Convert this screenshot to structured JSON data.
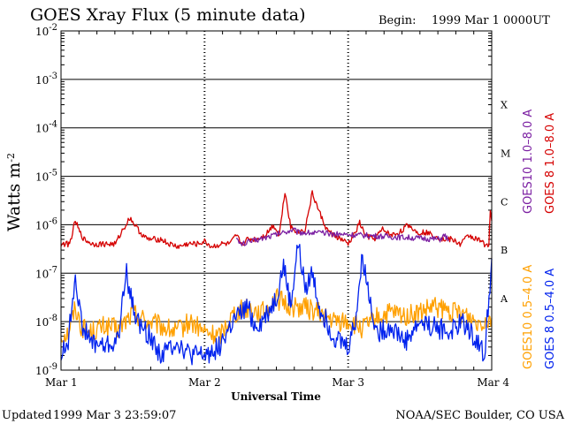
{
  "page": {
    "title": "GOES Xray Flux (5 minute data)",
    "begin_label": "Begin:",
    "begin_value": "1999 Mar 1 0000UT",
    "updated_label": "Updated",
    "updated_value": "1999 Mar  3 23:59:07",
    "credit": "NOAA/SEC Boulder, CO USA"
  },
  "colors": {
    "goes10_long": "#7b1fa2",
    "goes8_long": "#d50000",
    "goes10_short": "#ffa000",
    "goes8_short": "#0022ee",
    "grid": "#000000"
  },
  "chart_data": {
    "type": "line",
    "title": "GOES Xray Flux (5 minute data)",
    "xlabel": "Universal Time",
    "ylabel_base": "Watts m",
    "ylabel_exp": "-2",
    "yscale": "log",
    "ylim": [
      1e-09,
      0.01
    ],
    "y_ticks": [
      {
        "value": 1e-09,
        "base": "10",
        "exp": "-9"
      },
      {
        "value": 1e-08,
        "base": "10",
        "exp": "-8"
      },
      {
        "value": 1e-07,
        "base": "10",
        "exp": "-7"
      },
      {
        "value": 1e-06,
        "base": "10",
        "exp": "-6"
      },
      {
        "value": 1e-05,
        "base": "10",
        "exp": "-5"
      },
      {
        "value": 0.0001,
        "base": "10",
        "exp": "-4"
      },
      {
        "value": 0.001,
        "base": "10",
        "exp": "-3"
      },
      {
        "value": 0.01,
        "base": "10",
        "exp": "-2"
      }
    ],
    "x_unit": "days since 1999 Mar 1 00:00 UT",
    "xlim": [
      0,
      3
    ],
    "x_ticks": [
      {
        "value": 0,
        "label": "Mar 1"
      },
      {
        "value": 1,
        "label": "Mar 2"
      },
      {
        "value": 2,
        "label": "Mar 3"
      },
      {
        "value": 3,
        "label": "Mar 4"
      }
    ],
    "flare_classes": [
      {
        "label": "A",
        "value": 3e-08
      },
      {
        "label": "B",
        "value": 3e-07
      },
      {
        "label": "C",
        "value": 3e-06
      },
      {
        "label": "M",
        "value": 3e-05
      },
      {
        "label": "X",
        "value": 0.0003
      }
    ],
    "legend_right_inner": {
      "goes10_long": "GOES10 1.0–8.0 A",
      "goes10_short": "GOES10 0.5–4.0 A"
    },
    "legend_right_outer": {
      "goes8_long": "GOES 8 1.0–8.0 A",
      "goes8_short": "GOES 8 0.5–4.0 A"
    },
    "series": [
      {
        "name": "GOES 8 1.0–8.0 A",
        "key": "goes8_long",
        "x": [
          0,
          0.06,
          0.1,
          0.13,
          0.16,
          0.22,
          0.28,
          0.34,
          0.38,
          0.42,
          0.48,
          0.55,
          0.6,
          0.64,
          0.7,
          0.75,
          0.82,
          0.88,
          0.95,
          1.0,
          1.05,
          1.12,
          1.18,
          1.22,
          1.26,
          1.3,
          1.36,
          1.42,
          1.48,
          1.52,
          1.56,
          1.6,
          1.65,
          1.7,
          1.75,
          1.8,
          1.85,
          1.9,
          1.95,
          2.0,
          2.04,
          2.08,
          2.12,
          2.18,
          2.24,
          2.3,
          2.36,
          2.42,
          2.48,
          2.54,
          2.6,
          2.66,
          2.72,
          2.78,
          2.84,
          2.9,
          2.95,
          2.98,
          2.99,
          3.0
        ],
        "y": [
          4e-07,
          4e-07,
          1.2e-06,
          7e-07,
          5e-07,
          4e-07,
          4e-07,
          4e-07,
          4e-07,
          7e-07,
          1.4e-06,
          7e-07,
          5e-07,
          5e-07,
          5e-07,
          4e-07,
          3.5e-07,
          4e-07,
          4e-07,
          4.5e-07,
          3.5e-07,
          4e-07,
          4e-07,
          6e-07,
          4e-07,
          5e-07,
          5e-07,
          6e-07,
          1e-06,
          6e-07,
          5e-06,
          9e-07,
          7e-07,
          8e-07,
          4.5e-06,
          1.8e-06,
          8e-07,
          6e-07,
          5e-07,
          4e-07,
          6e-07,
          1.1e-06,
          6e-07,
          5e-07,
          8e-07,
          6e-07,
          7e-07,
          1e-06,
          7e-07,
          7e-07,
          6e-07,
          5e-07,
          5e-07,
          4e-07,
          6e-07,
          5e-07,
          4e-07,
          4e-07,
          2e-06,
          1.2e-06
        ]
      },
      {
        "name": "GOES10 1.0–8.0 A",
        "key": "goes10_long",
        "x": [
          1.22,
          1.24,
          1.26,
          1.62,
          1.65,
          1.68,
          2.64,
          2.67,
          2.7
        ],
        "y": [
          6e-07,
          4e-07,
          4e-07,
          8e-07,
          7e-07,
          7e-07,
          5e-07,
          6e-07,
          5e-07
        ]
      },
      {
        "name": "GOES10 0.5–4.0 A",
        "key": "goes10_short",
        "x": [
          0,
          0.05,
          0.1,
          0.14,
          0.2,
          0.3,
          0.4,
          0.5,
          0.55,
          0.6,
          0.7,
          0.8,
          0.9,
          1.0,
          1.1,
          1.2,
          1.3,
          1.4,
          1.5,
          1.6,
          1.7,
          1.8,
          1.9,
          2.0,
          2.1,
          2.2,
          2.3,
          2.4,
          2.5,
          2.6,
          2.7,
          2.8,
          2.9,
          3.0
        ],
        "y": [
          5e-09,
          6e-09,
          2e-08,
          8e-09,
          6e-09,
          8e-09,
          7e-09,
          1.5e-08,
          1.3e-08,
          1e-08,
          8e-09,
          6e-09,
          1e-08,
          6e-09,
          5e-09,
          1.5e-08,
          2e-08,
          1.5e-08,
          3e-08,
          2e-08,
          2e-08,
          1.5e-08,
          1e-08,
          1e-08,
          7e-09,
          1.2e-08,
          1.5e-08,
          1.3e-08,
          1.5e-08,
          2e-08,
          1.6e-08,
          1.5e-08,
          1e-08,
          1.2e-08
        ]
      },
      {
        "name": "GOES 8 0.5–4.0 A",
        "key": "goes8_short",
        "x": [
          0,
          0.05,
          0.1,
          0.14,
          0.2,
          0.3,
          0.4,
          0.45,
          0.5,
          0.55,
          0.6,
          0.7,
          0.8,
          0.9,
          1.0,
          1.1,
          1.2,
          1.3,
          1.35,
          1.4,
          1.5,
          1.55,
          1.6,
          1.65,
          1.7,
          1.75,
          1.8,
          1.9,
          2.0,
          2.05,
          2.1,
          2.15,
          2.2,
          2.3,
          2.4,
          2.5,
          2.6,
          2.7,
          2.8,
          2.9,
          2.95,
          3.0
        ],
        "y": [
          2e-09,
          4e-09,
          1e-07,
          1e-08,
          4e-09,
          3e-09,
          4e-09,
          1.2e-07,
          2e-08,
          8e-09,
          6e-09,
          2e-09,
          4e-09,
          2e-09,
          2e-09,
          3e-09,
          1e-08,
          2e-08,
          8e-09,
          1e-08,
          3e-08,
          1.5e-07,
          2e-08,
          4e-07,
          5e-08,
          1e-07,
          2e-08,
          5e-09,
          3e-09,
          1e-08,
          2.2e-07,
          3e-08,
          6e-09,
          8e-09,
          4e-09,
          1e-08,
          8e-09,
          6e-09,
          1e-08,
          4e-09,
          2e-09,
          2e-07
        ]
      }
    ]
  }
}
